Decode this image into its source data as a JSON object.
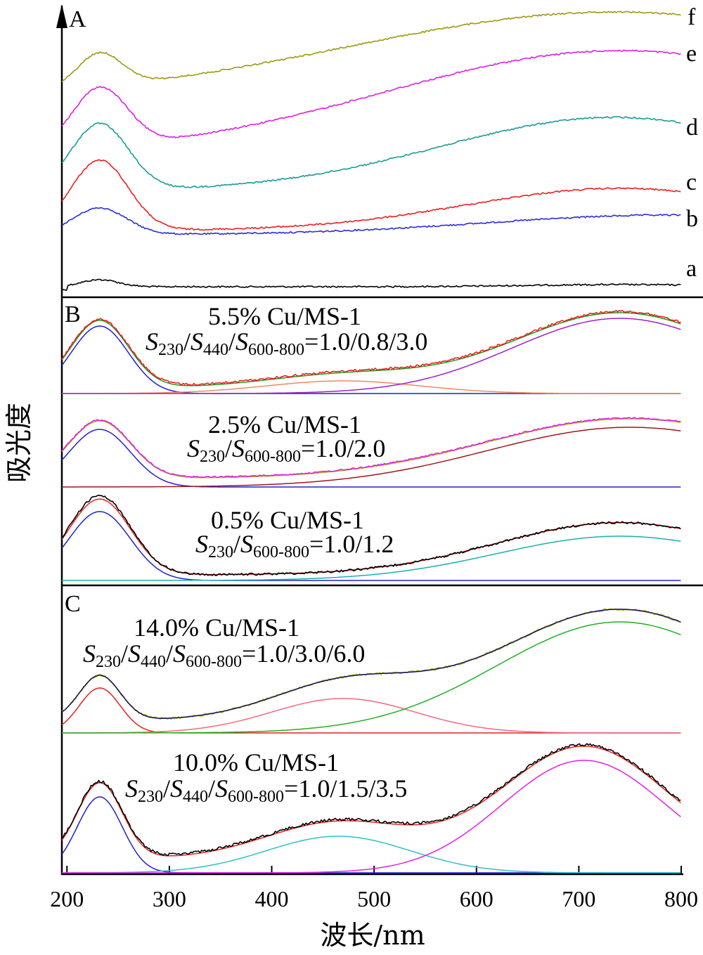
{
  "chart_data": {
    "type": "line",
    "xlabel": "波长/nm",
    "ylabel": "吸光度",
    "xlim": [
      190,
      800
    ],
    "x_ticks": [
      "200",
      "300",
      "400",
      "500",
      "600",
      "700",
      "800"
    ],
    "panels": [
      {
        "label": "A",
        "series": [
          {
            "name": "a",
            "color": "#000000",
            "peak_nm": 230,
            "broad_band_nm": null
          },
          {
            "name": "b",
            "color": "#2b2bd9",
            "peak_nm": 230,
            "broad_band_nm": 760
          },
          {
            "name": "c",
            "color": "#e8201e",
            "peak_nm": 230,
            "broad_band_nm": 720
          },
          {
            "name": "d",
            "color": "#1a9a9a",
            "peak_nm": 230,
            "broad_band_nm": 720
          },
          {
            "name": "e",
            "color": "#e01ee0",
            "peak_nm": 230,
            "broad_band_nm": 730
          },
          {
            "name": "f",
            "color": "#9a9a10",
            "peak_nm": 230,
            "broad_band_nm": 740
          }
        ]
      },
      {
        "label": "B",
        "subplots": [
          {
            "sample": "5.5% Cu/MS-1",
            "ratio": {
              "parts": [
                "230",
                "440",
                "600-800"
              ],
              "value": "=1.0/0.8/3.0"
            },
            "fit_components_nm": [
              230,
              470,
              740
            ],
            "colors": {
              "data": "#e8201e",
              "fit": "#1c9a1c",
              "components": [
                "#2020d0",
                "#f08a60",
                "#a020c8"
              ]
            }
          },
          {
            "sample": "2.5% Cu/MS-1",
            "ratio": {
              "parts": [
                "230",
                "600-800"
              ],
              "value": "=1.0/2.0"
            },
            "fit_components_nm": [
              230,
              750
            ],
            "colors": {
              "data": "#e01ee0",
              "fit": "#b8b818",
              "components": [
                "#2020d0",
                "#a01818"
              ]
            }
          },
          {
            "sample": "0.5% Cu/MS-1",
            "ratio": {
              "parts": [
                "230",
                "600-800"
              ],
              "value": "=1.0/1.2"
            },
            "fit_components_nm": [
              230,
              740
            ],
            "colors": {
              "data": "#000000",
              "fit": "#e8201e",
              "components": [
                "#2020d0",
                "#1ab0b0"
              ]
            }
          }
        ]
      },
      {
        "label": "C",
        "subplots": [
          {
            "sample": "14.0% Cu/MS-1",
            "ratio": {
              "parts": [
                "230",
                "440",
                "600-800"
              ],
              "value": "=1.0/3.0/6.0"
            },
            "fit_components_nm": [
              230,
              470,
              740
            ],
            "colors": {
              "data": "#b8b818",
              "fit": "#10105a",
              "components": [
                "#e8201e",
                "#f06a80",
                "#20b020"
              ]
            }
          },
          {
            "sample": "10.0% Cu/MS-1",
            "ratio": {
              "parts": [
                "230",
                "440",
                "600-800"
              ],
              "value": "=1.0/1.5/3.5"
            },
            "fit_components_nm": [
              230,
              465,
              705
            ],
            "colors": {
              "data": "#000000",
              "fit": "#e8201e",
              "components": [
                "#2020d0",
                "#30c0c8",
                "#e020e0"
              ]
            }
          }
        ]
      }
    ]
  }
}
